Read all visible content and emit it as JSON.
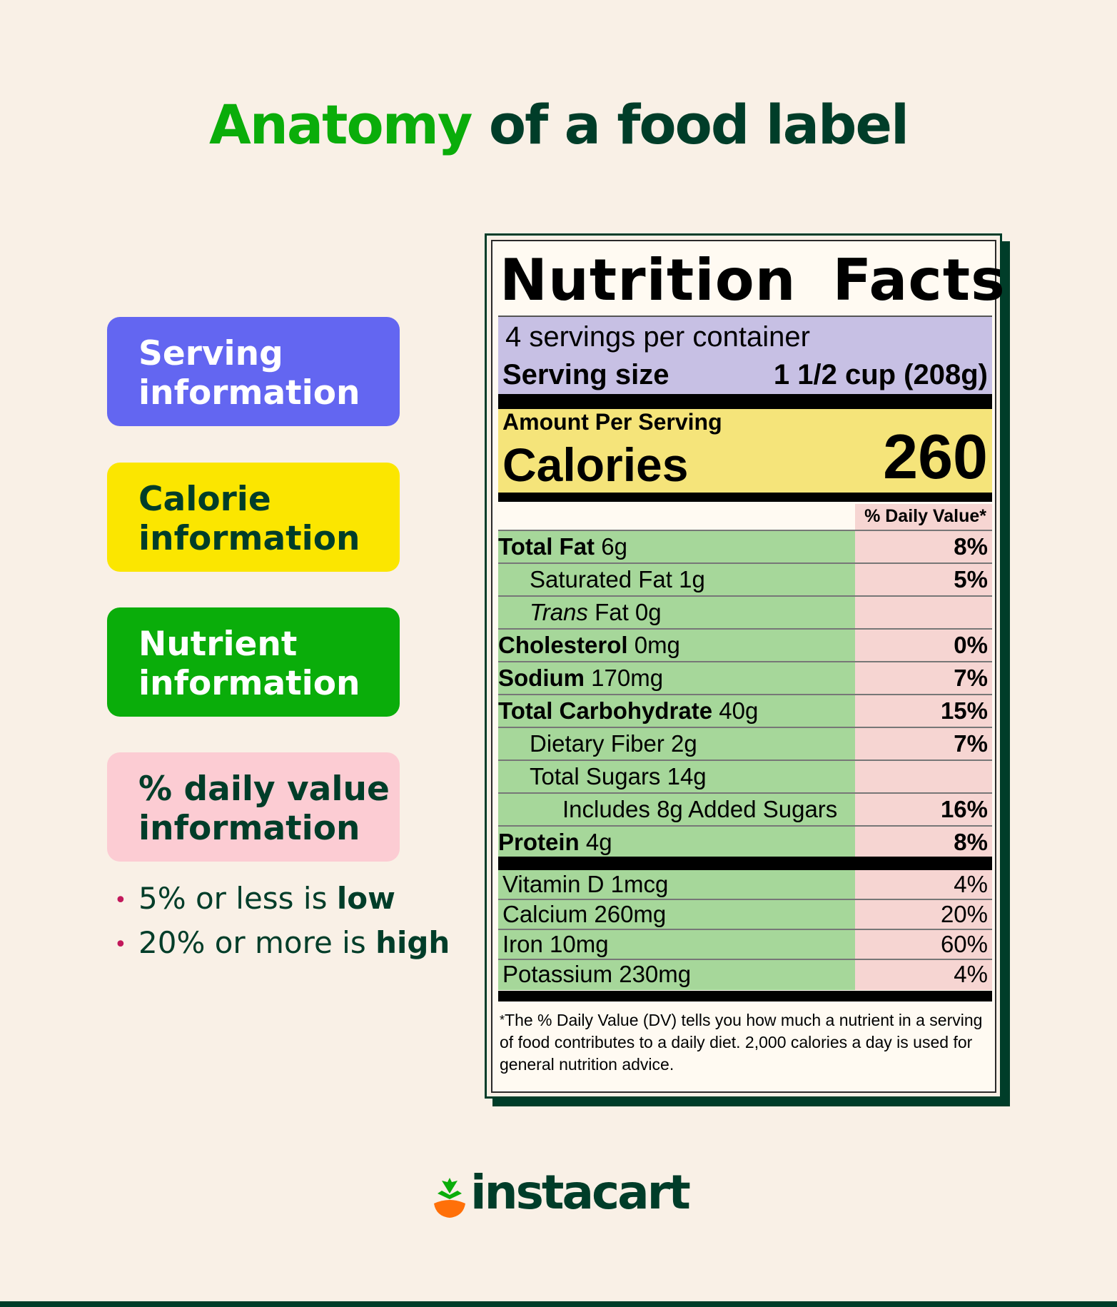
{
  "title": {
    "accent": "Anatomy",
    "rest": " of a food label"
  },
  "legend": {
    "serving": [
      "Serving",
      "information"
    ],
    "calorie": [
      "Calorie",
      "information"
    ],
    "nutrient": [
      "Nutrient",
      "information"
    ],
    "daily_value": [
      "% daily value",
      "information"
    ]
  },
  "bullets": [
    {
      "prefix": "5% or less is ",
      "bold": "low"
    },
    {
      "prefix": "20% or more is ",
      "bold": "high"
    }
  ],
  "label": {
    "heading": "Nutrition Facts",
    "servings_per_container": "4 servings per container",
    "serving_size_label": "Serving size",
    "serving_size_value": "1 1/2 cup (208g)",
    "amount_per_serving": "Amount Per Serving",
    "calories_label": "Calories",
    "calories_value": "260",
    "dv_header": "% Daily Value*",
    "nutrients": [
      {
        "bold": "Total Fat",
        "amount": " 6g",
        "dv": "8%"
      },
      {
        "plain": "Saturated Fat 1g",
        "dv": "5%"
      },
      {
        "italic": "Trans",
        "amount": " Fat 0g",
        "dv": ""
      },
      {
        "bold": "Cholesterol",
        "amount": " 0mg",
        "dv": "0%"
      },
      {
        "bold": "Sodium",
        "amount": " 170mg",
        "dv": "7%"
      },
      {
        "bold": "Total Carbohydrate",
        "amount": " 40g",
        "dv": "15%"
      },
      {
        "plain": "Dietary Fiber 2g",
        "dv": "7%"
      },
      {
        "plain": "Total Sugars 14g",
        "dv": ""
      },
      {
        "plain": "Includes 8g Added Sugars",
        "dv": "16%"
      },
      {
        "bold": "Protein",
        "amount": " 4g",
        "dv": "8%"
      }
    ],
    "vitamins": [
      {
        "name": "Vitamin D 1mcg",
        "dv": "4%"
      },
      {
        "name": "Calcium 260mg",
        "dv": "20%"
      },
      {
        "name": "Iron 10mg",
        "dv": "60%"
      },
      {
        "name": "Potassium 230mg",
        "dv": "4%"
      }
    ],
    "footnote_star": "*",
    "footnote": "The % Daily Value (DV) tells you how much a nutrient in a serving of food contributes to a daily diet. 2,000 calories a day is used for general nutrition advice."
  },
  "logo": {
    "text": "instacart",
    "icon": "carrot-icon"
  },
  "colors": {
    "background": "#f9f0e6",
    "dark_green": "#003d29",
    "brand_green": "#0aad0a",
    "serving_purple": "#6366f1",
    "calorie_yellow": "#fbe600",
    "dv_pink": "#fcccd3",
    "label_nutrient_green": "#a6d79a",
    "label_dv_pink": "#f6d5d2",
    "label_serving_lavender": "#c7c0e4",
    "label_calorie_yellow": "#f5e47a",
    "carrot_orange": "#ff7009"
  }
}
